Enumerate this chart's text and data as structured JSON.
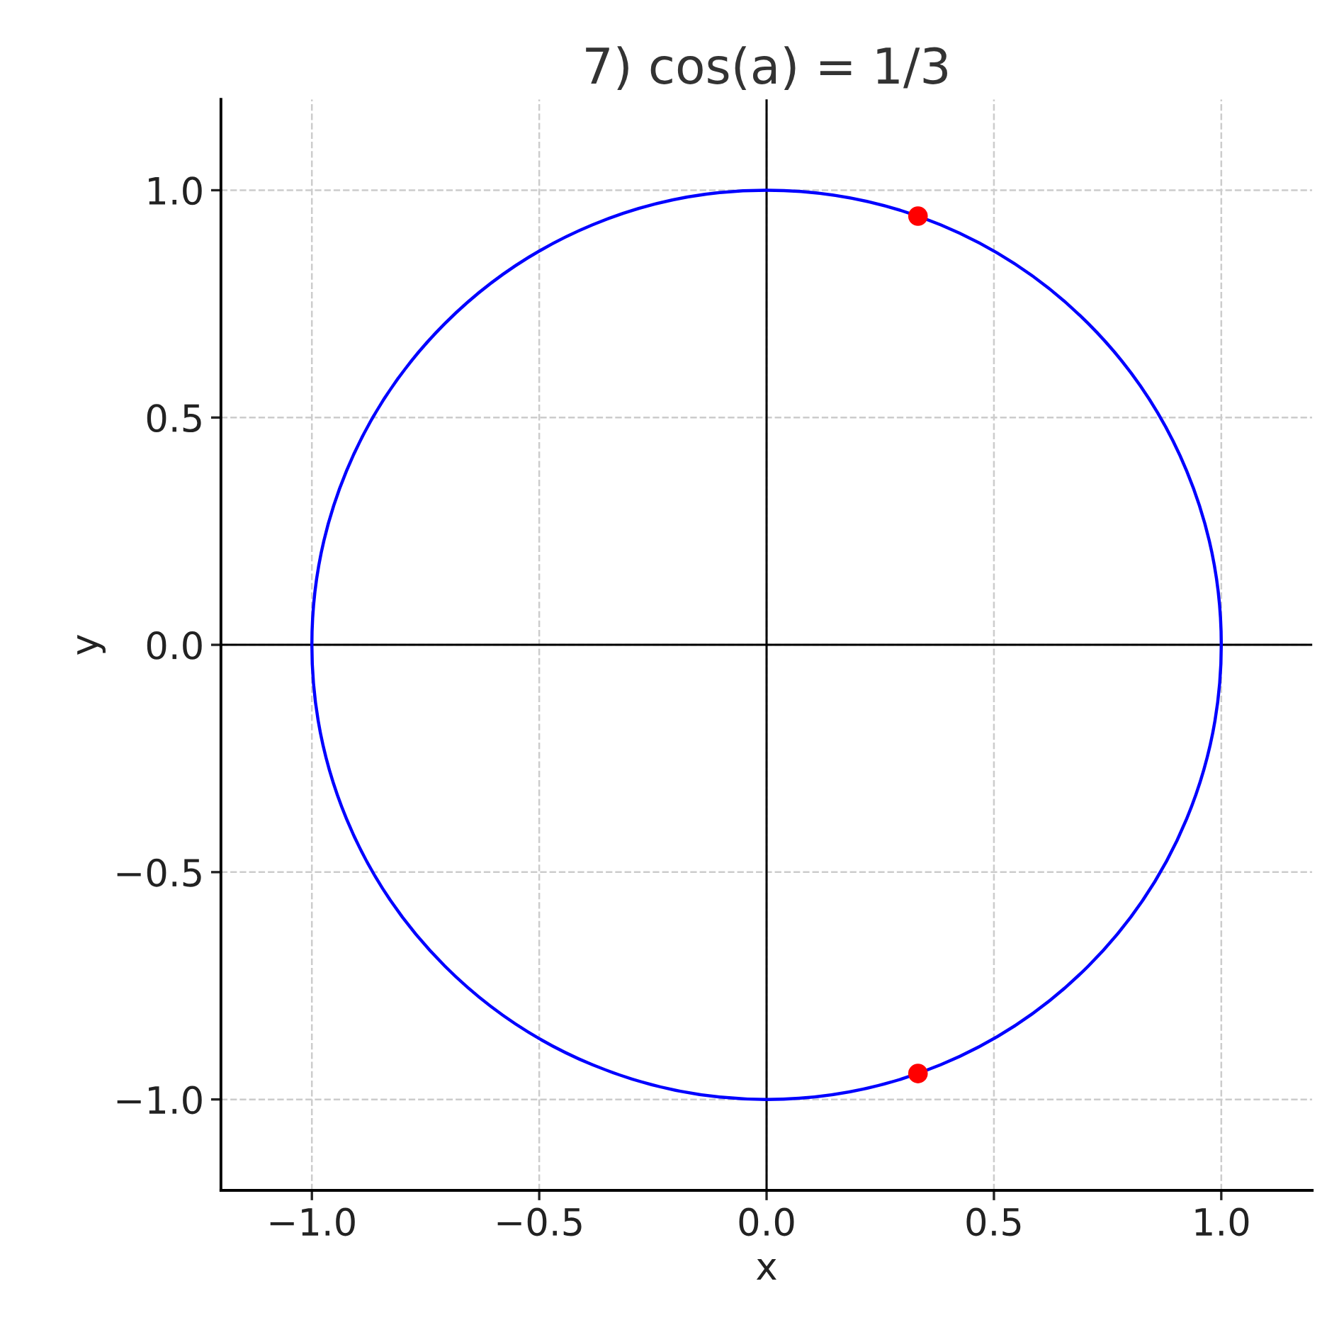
{
  "chart_data": {
    "type": "scatter",
    "title": "7) cos(a) = 1/3",
    "xlabel": "x",
    "ylabel": "y",
    "xlim": [
      -1.2,
      1.2
    ],
    "ylim": [
      -1.2,
      1.2
    ],
    "xticks": [
      {
        "value": -1.0,
        "label": "−1.0"
      },
      {
        "value": -0.5,
        "label": "−0.5"
      },
      {
        "value": 0.0,
        "label": "0.0"
      },
      {
        "value": 0.5,
        "label": "0.5"
      },
      {
        "value": 1.0,
        "label": "1.0"
      }
    ],
    "yticks": [
      {
        "value": -1.0,
        "label": "−1.0"
      },
      {
        "value": -0.5,
        "label": "−0.5"
      },
      {
        "value": 0.0,
        "label": "0.0"
      },
      {
        "value": 0.5,
        "label": "0.5"
      },
      {
        "value": 1.0,
        "label": "1.0"
      }
    ],
    "grid": true,
    "series": [
      {
        "color": "#ff0000",
        "marker": "circle",
        "x": [
          0.333,
          0.333
        ],
        "values": [
          0.943,
          -0.943
        ]
      }
    ]
  }
}
